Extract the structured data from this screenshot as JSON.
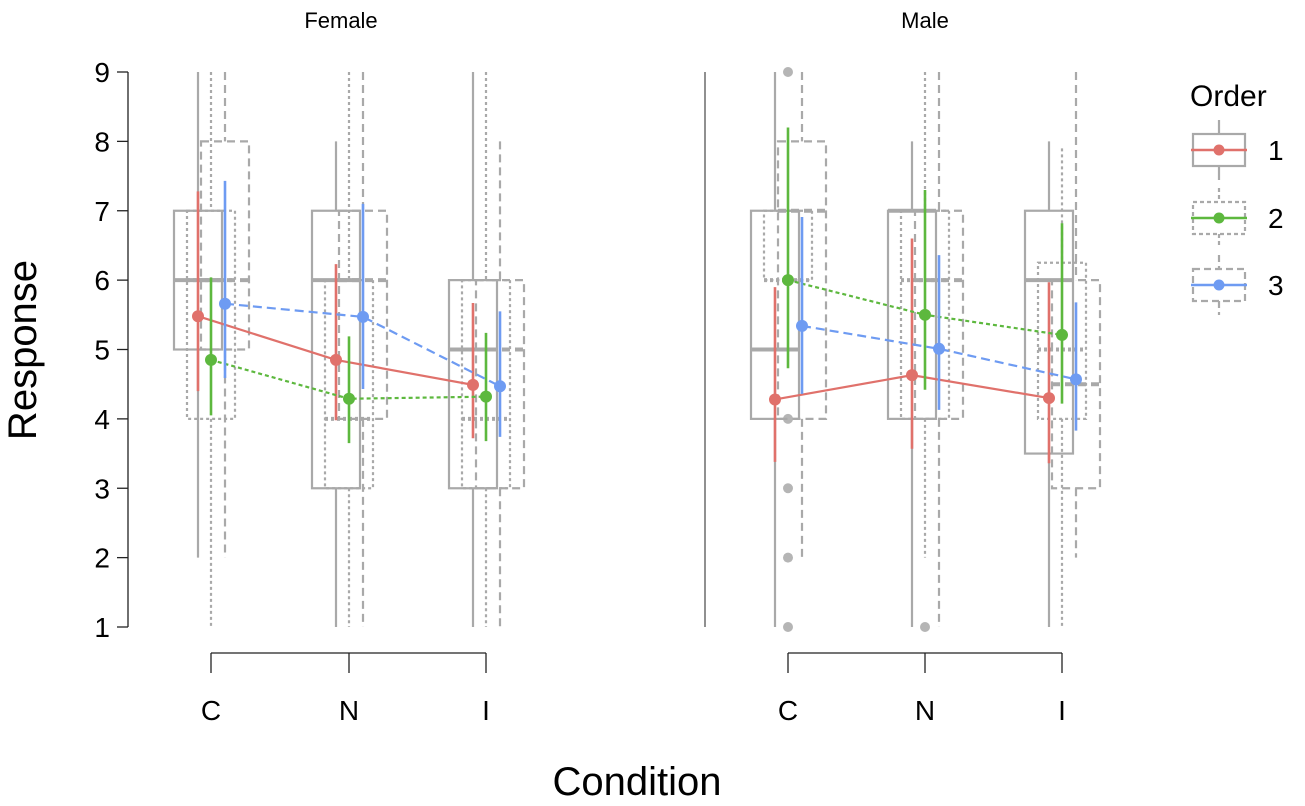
{
  "chart_data": {
    "type": "boxplot+pointrange",
    "xlabel": "Condition",
    "ylabel": "Response",
    "ylim": [
      1,
      9
    ],
    "yticks": [
      "1",
      "2",
      "3",
      "4",
      "5",
      "6",
      "7",
      "8",
      "9"
    ],
    "categories": [
      "C",
      "N",
      "I"
    ],
    "legend": {
      "title": "Order",
      "entries": [
        "1",
        "2",
        "3"
      ],
      "placement": "right"
    },
    "colors": {
      "1": "#E0716B",
      "2": "#5DB83E",
      "3": "#6E9BF2",
      "box": "#A9A9A9"
    },
    "panels": [
      {
        "title": "Female",
        "series": [
          {
            "name": "1",
            "mean": [
              5.48,
              4.85,
              4.49
            ],
            "lower": [
              4.4,
              3.98,
              3.72
            ],
            "upper": [
              7.28,
              6.23,
              5.67
            ],
            "box": [
              {
                "min": 2,
                "q1": 5,
                "median": 6,
                "q3": 7,
                "max": 9
              },
              {
                "min": 1,
                "q1": 3,
                "median": 6,
                "q3": 7,
                "max": 8
              },
              {
                "min": 1,
                "q1": 3,
                "median": 5,
                "q3": 6,
                "max": 9
              }
            ],
            "outliers": [
              [],
              [],
              []
            ]
          },
          {
            "name": "2",
            "mean": [
              4.85,
              4.29,
              4.32
            ],
            "lower": [
              4.05,
              3.65,
              3.68
            ],
            "upper": [
              6.04,
              5.19,
              5.24
            ],
            "box": [
              {
                "min": 1,
                "q1": 4,
                "median": 6,
                "q3": 7,
                "max": 9
              },
              {
                "min": 1,
                "q1": 3,
                "median": 4,
                "q3": 6,
                "max": 9
              },
              {
                "min": 1,
                "q1": 3,
                "median": 4,
                "q3": 6,
                "max": 9
              }
            ],
            "outliers": [
              [],
              [],
              []
            ]
          },
          {
            "name": "3",
            "mean": [
              5.66,
              5.47,
              4.47
            ],
            "lower": [
              4.59,
              4.43,
              3.74
            ],
            "upper": [
              7.43,
              7.1,
              5.55
            ],
            "box": [
              {
                "min": 2,
                "q1": 5,
                "median": 6,
                "q3": 8,
                "max": 9
              },
              {
                "min": 1,
                "q1": 4,
                "median": 6,
                "q3": 7,
                "max": 9
              },
              {
                "min": 1,
                "q1": 3,
                "median": 5,
                "q3": 6,
                "max": 8
              }
            ],
            "outliers": [
              [],
              [],
              []
            ]
          }
        ]
      },
      {
        "title": "Male",
        "series": [
          {
            "name": "1",
            "mean": [
              4.28,
              4.63,
              4.3
            ],
            "lower": [
              3.38,
              3.57,
              3.36
            ],
            "upper": [
              5.9,
              6.6,
              5.97
            ],
            "box": [
              {
                "min": 1,
                "q1": 4,
                "median": 5,
                "q3": 7,
                "max": 9
              },
              {
                "min": 1,
                "q1": 4,
                "median": 7,
                "q3": 7,
                "max": 8
              },
              {
                "min": 1,
                "q1": 3.5,
                "median": 6,
                "q3": 7,
                "max": 8
              }
            ],
            "outliers": [
              [],
              [],
              []
            ]
          },
          {
            "name": "2",
            "mean": [
              6.0,
              5.5,
              5.21
            ],
            "lower": [
              4.73,
              4.42,
              4.22
            ],
            "upper": [
              8.2,
              7.3,
              6.82
            ],
            "box": [
              {
                "min": 6,
                "q1": 6,
                "median": 6,
                "q3": 7,
                "max": 7
              },
              {
                "min": 2,
                "q1": 4,
                "median": 6,
                "q3": 7,
                "max": 9
              },
              {
                "min": 1,
                "q1": 4,
                "median": 5,
                "q3": 6.25,
                "max": 7.9
              }
            ],
            "outliers": [
              [
                9,
                4,
                3,
                2,
                1
              ],
              [
                1
              ],
              []
            ]
          },
          {
            "name": "3",
            "mean": [
              5.34,
              5.01,
              4.57
            ],
            "lower": [
              4.36,
              4.13,
              3.83
            ],
            "upper": [
              6.91,
              6.36,
              5.68
            ],
            "box": [
              {
                "min": 2,
                "q1": 4,
                "median": 7,
                "q3": 8,
                "max": 9
              },
              {
                "min": 1,
                "q1": 4,
                "median": 6,
                "q3": 7,
                "max": 9
              },
              {
                "min": 2,
                "q1": 3,
                "median": 4.5,
                "q3": 6,
                "max": 9
              }
            ],
            "outliers": [
              [],
              [],
              []
            ]
          }
        ]
      }
    ]
  }
}
